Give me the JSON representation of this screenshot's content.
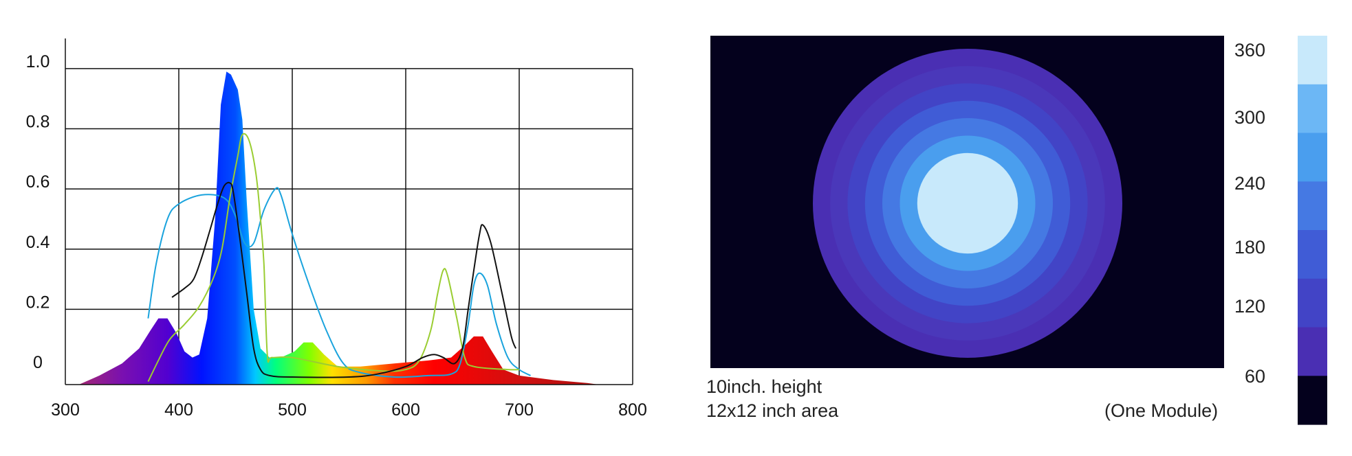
{
  "chart_data": [
    {
      "type": "line",
      "title": "",
      "xlabel": "",
      "ylabel": "",
      "xlim": [
        300,
        800
      ],
      "ylim": [
        0,
        1.15
      ],
      "x_ticks": [
        "300",
        "400",
        "500",
        "600",
        "700",
        "800"
      ],
      "y_ticks": [
        {
          "label": "0",
          "value": 0.05
        },
        {
          "label": "0.2",
          "value": 0.25
        },
        {
          "label": "0.4",
          "value": 0.45
        },
        {
          "label": "0.6",
          "value": 0.65
        },
        {
          "label": "0.8",
          "value": 0.85
        },
        {
          "label": "1.0",
          "value": 1.05
        }
      ],
      "grid": true,
      "series": [
        {
          "kind": "area",
          "fill": "spectral-gradient",
          "points": [
            [
              312,
              0
            ],
            [
              330,
              0.03
            ],
            [
              350,
              0.07
            ],
            [
              365,
              0.12
            ],
            [
              375,
              0.18
            ],
            [
              382,
              0.22
            ],
            [
              390,
              0.22
            ],
            [
              398,
              0.17
            ],
            [
              405,
              0.11
            ],
            [
              412,
              0.09
            ],
            [
              418,
              0.1
            ],
            [
              425,
              0.22
            ],
            [
              432,
              0.55
            ],
            [
              437,
              0.93
            ],
            [
              442,
              1.04
            ],
            [
              446,
              1.03
            ],
            [
              452,
              0.98
            ],
            [
              456,
              0.88
            ],
            [
              460,
              0.6
            ],
            [
              466,
              0.25
            ],
            [
              472,
              0.12
            ],
            [
              480,
              0.09
            ],
            [
              490,
              0.09
            ],
            [
              502,
              0.11
            ],
            [
              510,
              0.14
            ],
            [
              518,
              0.14
            ],
            [
              528,
              0.1
            ],
            [
              540,
              0.06
            ],
            [
              560,
              0.06
            ],
            [
              590,
              0.07
            ],
            [
              620,
              0.08
            ],
            [
              640,
              0.09
            ],
            [
              652,
              0.13
            ],
            [
              660,
              0.16
            ],
            [
              668,
              0.16
            ],
            [
              676,
              0.11
            ],
            [
              686,
              0.05
            ],
            [
              700,
              0.03
            ],
            [
              730,
              0.015
            ],
            [
              760,
              0.005
            ],
            [
              770,
              0
            ]
          ]
        },
        {
          "kind": "line",
          "color": "#1aa3dd",
          "points": [
            [
              373,
              0.22
            ],
            [
              380,
              0.4
            ],
            [
              390,
              0.55
            ],
            [
              400,
              0.6
            ],
            [
              420,
              0.63
            ],
            [
              440,
              0.62
            ],
            [
              450,
              0.56
            ],
            [
              458,
              0.47
            ],
            [
              466,
              0.47
            ],
            [
              475,
              0.58
            ],
            [
              485,
              0.65
            ],
            [
              490,
              0.63
            ],
            [
              500,
              0.5
            ],
            [
              515,
              0.33
            ],
            [
              530,
              0.18
            ],
            [
              545,
              0.07
            ],
            [
              560,
              0.04
            ],
            [
              590,
              0.025
            ],
            [
              620,
              0.03
            ],
            [
              640,
              0.035
            ],
            [
              648,
              0.07
            ],
            [
              655,
              0.2
            ],
            [
              660,
              0.33
            ],
            [
              665,
              0.37
            ],
            [
              672,
              0.33
            ],
            [
              680,
              0.2
            ],
            [
              690,
              0.09
            ],
            [
              700,
              0.05
            ],
            [
              710,
              0.03
            ]
          ]
        },
        {
          "kind": "line",
          "color": "#9acd32",
          "points": [
            [
              373,
              0.01
            ],
            [
              382,
              0.08
            ],
            [
              392,
              0.15
            ],
            [
              405,
              0.2
            ],
            [
              418,
              0.26
            ],
            [
              430,
              0.35
            ],
            [
              438,
              0.45
            ],
            [
              445,
              0.62
            ],
            [
              452,
              0.76
            ],
            [
              456,
              0.83
            ],
            [
              462,
              0.81
            ],
            [
              468,
              0.7
            ],
            [
              472,
              0.55
            ],
            [
              475,
              0.4
            ],
            [
              478,
              0.1
            ],
            [
              482,
              0.09
            ],
            [
              500,
              0.09
            ],
            [
              540,
              0.06
            ],
            [
              580,
              0.045
            ],
            [
              600,
              0.05
            ],
            [
              612,
              0.08
            ],
            [
              622,
              0.18
            ],
            [
              628,
              0.3
            ],
            [
              633,
              0.38
            ],
            [
              637,
              0.36
            ],
            [
              645,
              0.22
            ],
            [
              652,
              0.09
            ],
            [
              660,
              0.06
            ],
            [
              690,
              0.05
            ],
            [
              700,
              0.05
            ]
          ]
        },
        {
          "kind": "line",
          "color": "#111111",
          "points": [
            [
              394,
              0.29
            ],
            [
              405,
              0.32
            ],
            [
              413,
              0.35
            ],
            [
              420,
              0.42
            ],
            [
              428,
              0.52
            ],
            [
              435,
              0.61
            ],
            [
              440,
              0.66
            ],
            [
              445,
              0.67
            ],
            [
              448,
              0.64
            ],
            [
              454,
              0.48
            ],
            [
              460,
              0.3
            ],
            [
              466,
              0.12
            ],
            [
              472,
              0.05
            ],
            [
              480,
              0.03
            ],
            [
              500,
              0.025
            ],
            [
              550,
              0.025
            ],
            [
              575,
              0.035
            ],
            [
              600,
              0.06
            ],
            [
              615,
              0.09
            ],
            [
              625,
              0.1
            ],
            [
              633,
              0.09
            ],
            [
              643,
              0.07
            ],
            [
              650,
              0.12
            ],
            [
              655,
              0.25
            ],
            [
              660,
              0.38
            ],
            [
              665,
              0.5
            ],
            [
              668,
              0.53
            ],
            [
              675,
              0.47
            ],
            [
              685,
              0.3
            ],
            [
              693,
              0.16
            ],
            [
              697,
              0.12
            ]
          ]
        }
      ]
    },
    {
      "type": "heatmap",
      "title": "",
      "labels": [
        "10inch. height",
        "12x12 inch area",
        "(One Module)"
      ],
      "colorbar": {
        "levels": [
          "60",
          "120",
          "180",
          "240",
          "300",
          "360"
        ],
        "colors": [
          "#04011d",
          "#4a2fb3",
          "#4244c6",
          "#405cd6",
          "#4579e3",
          "#4a9eee",
          "#6cb7f5",
          "#c8e9fb"
        ]
      },
      "background": "#04011d",
      "rings": [
        {
          "color": "#4a2fb3",
          "r": 1.0
        },
        {
          "color": "#4a38ba",
          "r": 0.888
        },
        {
          "color": "#4244c6",
          "r": 0.776
        },
        {
          "color": "#405cd6",
          "r": 0.663
        },
        {
          "color": "#4579e3",
          "r": 0.551
        },
        {
          "color": "#4a9eee",
          "r": 0.438
        },
        {
          "color": "#6cb7f5",
          "r": 0.326
        },
        {
          "color": "#c8e9fb",
          "r": 0.325
        }
      ]
    }
  ]
}
